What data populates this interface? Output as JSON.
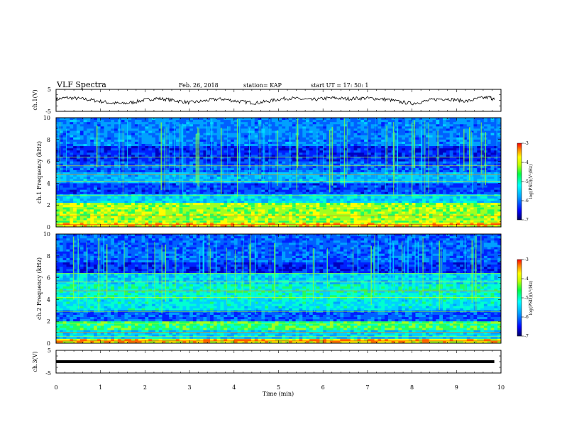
{
  "header": {
    "title": "VLF Spectra",
    "date": "Feb. 26, 2018",
    "station": "station= KAP",
    "start": "start  UT =   17: 50: 1"
  },
  "chart_data": [
    {
      "type": "line",
      "panel": "ch1-waveform",
      "ylabel": "ch.1(V)",
      "ylim": [
        -5,
        5
      ],
      "xlim": [
        0,
        10
      ],
      "yticks": [
        "5",
        "-5"
      ],
      "x_end": 9.85,
      "series": [
        {
          "color": "#000000",
          "x": [
            0,
            0.25,
            0.5,
            0.75,
            1.0,
            1.25,
            1.5,
            1.75,
            2.0,
            2.25,
            2.5,
            2.75,
            3.0,
            3.25,
            3.5,
            3.75,
            4.0,
            4.25,
            4.5,
            4.75,
            5.0,
            5.25,
            5.5,
            5.75,
            6.0,
            6.25,
            6.5,
            6.75,
            7.0,
            7.25,
            7.5,
            7.75,
            8.0,
            8.25,
            8.5,
            8.75,
            9.0,
            9.25,
            9.5,
            9.75,
            9.85
          ],
          "values": [
            0.5,
            1.2,
            0.8,
            0.3,
            -0.5,
            -1.2,
            -1.5,
            -0.8,
            0.2,
            0.9,
            0.4,
            -0.3,
            -1.0,
            -0.5,
            0.3,
            0.6,
            -0.2,
            -0.8,
            -1.2,
            -0.5,
            0.5,
            1.0,
            0.6,
            0.2,
            0.8,
            1.1,
            0.7,
            0.9,
            1.0,
            0.7,
            0.2,
            -0.8,
            -1.4,
            -0.6,
            0.4,
            0.8,
            0.2,
            -0.4,
            0.9,
            1.4,
            0.3
          ]
        }
      ]
    },
    {
      "type": "heatmap",
      "panel": "ch1-spectrogram",
      "ylabel": "ch.1 Frequency (kHz)",
      "ylim": [
        0,
        10
      ],
      "xlim": [
        0,
        10
      ],
      "yticks": [
        "0",
        "2",
        "4",
        "6",
        "8",
        "10"
      ],
      "colorbar": {
        "label": "log(PSD)(V²/Hz)",
        "range": [
          -7,
          -3
        ],
        "ticks": [
          "-3",
          "-4",
          "-5",
          "-6",
          "-7"
        ]
      }
    },
    {
      "type": "heatmap",
      "panel": "ch2-spectrogram",
      "ylabel": "ch.2 Frequency (kHz)",
      "ylim": [
        0,
        10
      ],
      "xlim": [
        0,
        10
      ],
      "yticks": [
        "0",
        "2",
        "4",
        "6",
        "8",
        "10"
      ],
      "colorbar": {
        "label": "log(PSD)(V²/Hz)",
        "range": [
          -7,
          -3
        ],
        "ticks": [
          "-3",
          "-4",
          "-5",
          "-6",
          "-7"
        ]
      }
    },
    {
      "type": "line",
      "panel": "ch3-waveform",
      "ylabel": "ch.3(V)",
      "ylim": [
        -5,
        5
      ],
      "xlim": [
        0,
        10
      ],
      "yticks": [
        "5",
        "-5"
      ],
      "series": [
        {
          "color": "#000000",
          "x": [
            0,
            9.85
          ],
          "values": [
            0,
            0
          ]
        }
      ],
      "xlabel": "Time  (min)",
      "xticks": [
        "0",
        "1",
        "2",
        "3",
        "4",
        "5",
        "6",
        "7",
        "8",
        "9",
        "10"
      ]
    }
  ],
  "colors": {
    "bg": "#ffffff",
    "ink": "#000000",
    "spec_low": "#000080",
    "spec_high": "#ff0000"
  }
}
